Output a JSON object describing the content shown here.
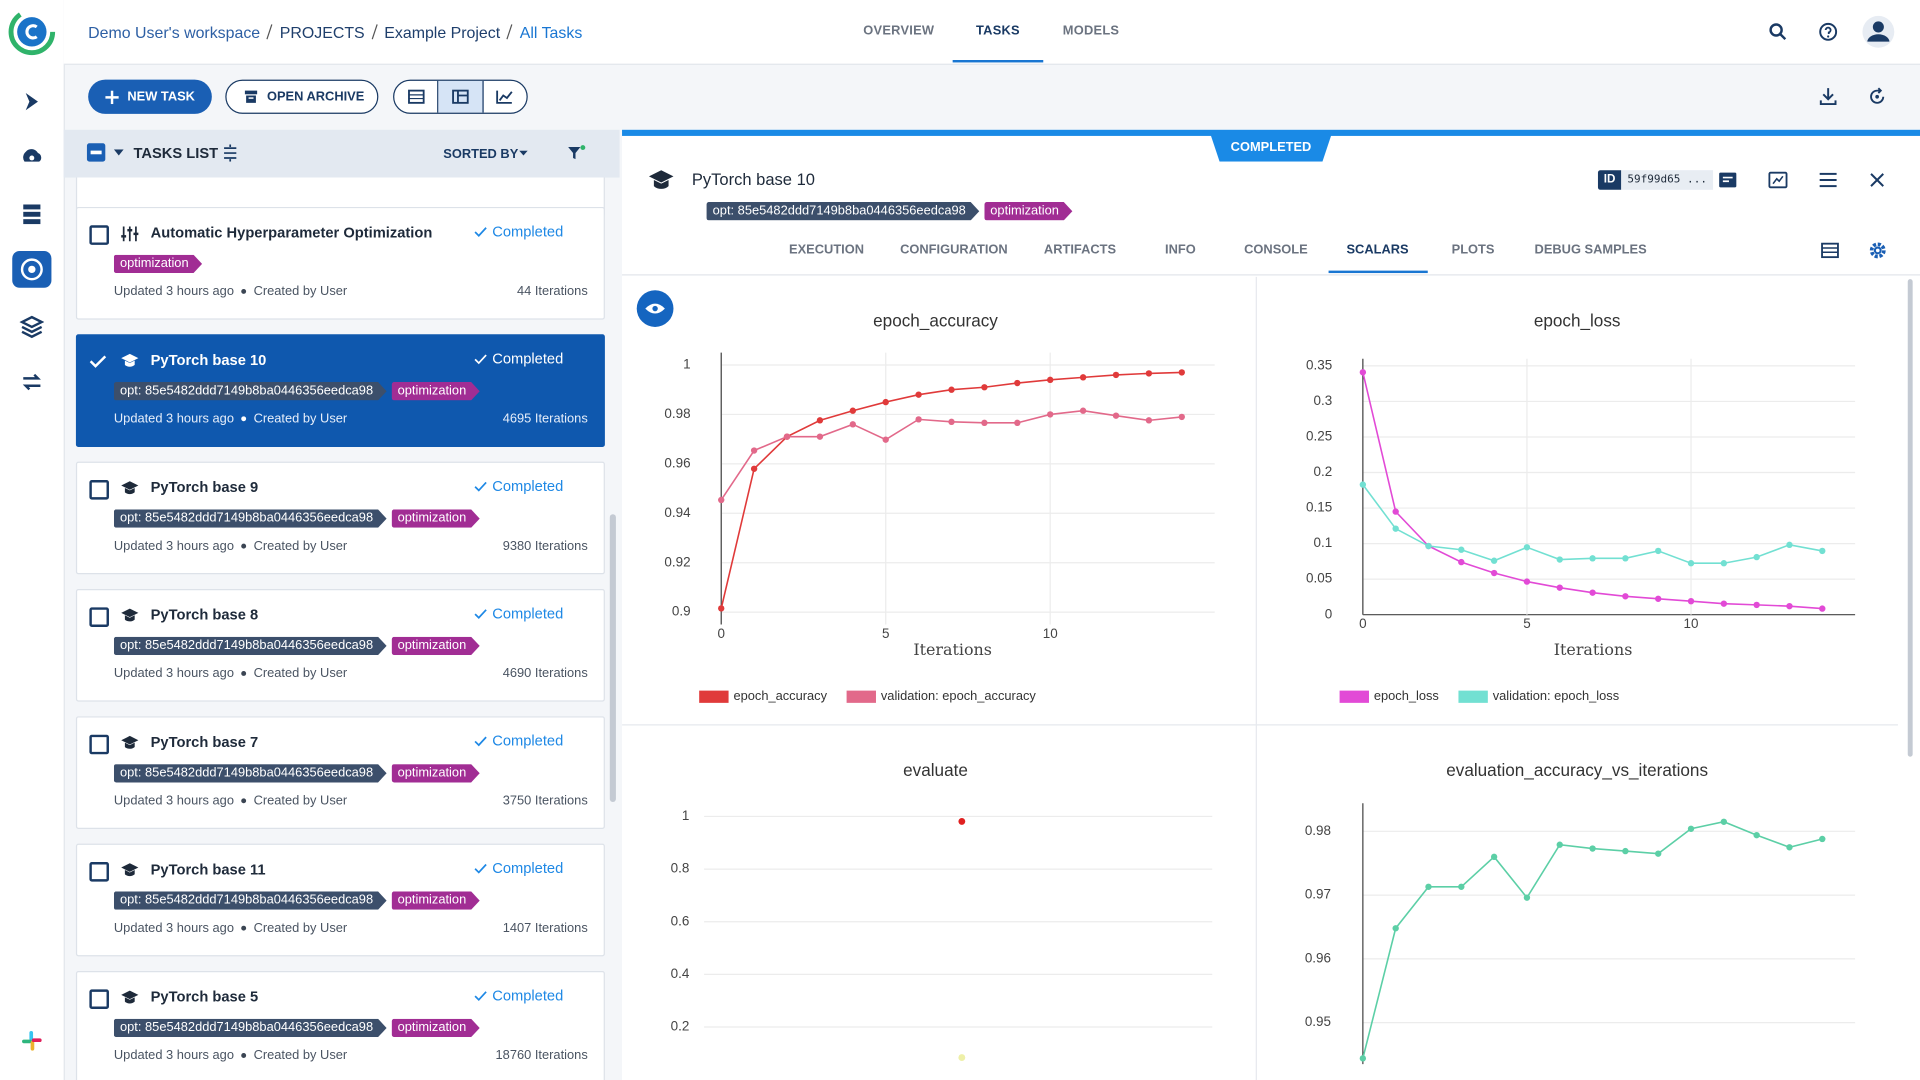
{
  "header": {
    "breadcrumbs": [
      "Demo User's workspace",
      "PROJECTS",
      "Example Project",
      "All Tasks"
    ],
    "tabs": [
      "OVERVIEW",
      "TASKS",
      "MODELS"
    ]
  },
  "toolbar": {
    "new_task": "NEW TASK",
    "open_archive": "OPEN ARCHIVE"
  },
  "tasks_list": {
    "title": "TASKS LIST",
    "sorted_by": "SORTED BY",
    "tasks": [
      {
        "name": "Automatic Hyperparameter Optimization",
        "status": "Completed",
        "tags": [
          {
            "text": "optimization",
            "color": "#a12d94"
          }
        ],
        "updated": "Updated 3 hours ago",
        "created": "Created by User",
        "iterations": "44 Iterations",
        "selected": false
      },
      {
        "name": "PyTorch base 10",
        "status": "Completed",
        "tags": [
          {
            "text": "opt: 85e5482ddd7149b8ba0446356eedca98",
            "color": "#3c4f6b"
          },
          {
            "text": "optimization",
            "color": "#a12d94"
          }
        ],
        "updated": "Updated 3 hours ago",
        "created": "Created by User",
        "iterations": "4695 Iterations",
        "selected": true
      },
      {
        "name": "PyTorch base 9",
        "status": "Completed",
        "tags": [
          {
            "text": "opt: 85e5482ddd7149b8ba0446356eedca98",
            "color": "#3c4f6b"
          },
          {
            "text": "optimization",
            "color": "#a12d94"
          }
        ],
        "updated": "Updated 3 hours ago",
        "created": "Created by User",
        "iterations": "9380 Iterations",
        "selected": false
      },
      {
        "name": "PyTorch base 8",
        "status": "Completed",
        "tags": [
          {
            "text": "opt: 85e5482ddd7149b8ba0446356eedca98",
            "color": "#3c4f6b"
          },
          {
            "text": "optimization",
            "color": "#a12d94"
          }
        ],
        "updated": "Updated 3 hours ago",
        "created": "Created by User",
        "iterations": "4690 Iterations",
        "selected": false
      },
      {
        "name": "PyTorch base 7",
        "status": "Completed",
        "tags": [
          {
            "text": "opt: 85e5482ddd7149b8ba0446356eedca98",
            "color": "#3c4f6b"
          },
          {
            "text": "optimization",
            "color": "#a12d94"
          }
        ],
        "updated": "Updated 3 hours ago",
        "created": "Created by User",
        "iterations": "3750 Iterations",
        "selected": false
      },
      {
        "name": "PyTorch base 11",
        "status": "Completed",
        "tags": [
          {
            "text": "opt: 85e5482ddd7149b8ba0446356eedca98",
            "color": "#3c4f6b"
          },
          {
            "text": "optimization",
            "color": "#a12d94"
          }
        ],
        "updated": "Updated 3 hours ago",
        "created": "Created by User",
        "iterations": "1407 Iterations",
        "selected": false
      },
      {
        "name": "PyTorch base 5",
        "status": "Completed",
        "tags": [
          {
            "text": "opt: 85e5482ddd7149b8ba0446356eedca98",
            "color": "#3c4f6b"
          },
          {
            "text": "optimization",
            "color": "#a12d94"
          }
        ],
        "updated": "Updated 3 hours ago",
        "created": "Created by User",
        "iterations": "18760 Iterations",
        "selected": false
      }
    ]
  },
  "task_details": {
    "status": "COMPLETED",
    "name": "PyTorch base 10",
    "id_label": "ID",
    "id": "59f99d65 ...",
    "tags": [
      {
        "text": "opt: 85e5482ddd7149b8ba0446356eedca98",
        "color": "#3c4f6b"
      },
      {
        "text": "optimization",
        "color": "#a12d94"
      }
    ],
    "tabs": [
      "EXECUTION",
      "CONFIGURATION",
      "ARTIFACTS",
      "INFO",
      "CONSOLE",
      "SCALARS",
      "PLOTS",
      "DEBUG SAMPLES"
    ]
  },
  "chart_data": [
    {
      "type": "line",
      "title": "epoch_accuracy",
      "x_label": "Iterations",
      "x": [
        0,
        1,
        2,
        3,
        4,
        5,
        6,
        7,
        8,
        9,
        10,
        11,
        12,
        13,
        14
      ],
      "series": [
        {
          "name": "epoch_accuracy",
          "color": "#e03a3a",
          "values": [
            0.9015,
            0.958,
            0.971,
            0.9776,
            0.9815,
            0.985,
            0.988,
            0.99,
            0.991,
            0.9927,
            0.994,
            0.995,
            0.996,
            0.9966,
            0.997
          ]
        },
        {
          "name": "validation: epoch_accuracy",
          "color": "#e2698a",
          "values": [
            0.9454,
            0.9654,
            0.971,
            0.971,
            0.976,
            0.9698,
            0.978,
            0.977,
            0.9766,
            0.9766,
            0.98,
            0.9815,
            0.9795,
            0.9776,
            0.979
          ]
        }
      ],
      "xlim": [
        0,
        15
      ],
      "xticks": [
        0,
        5,
        10
      ],
      "ylim": [
        0.895,
        1.005
      ],
      "yticks": [
        0.9,
        0.92,
        0.94,
        0.96,
        0.98,
        1
      ],
      "grid": true
    },
    {
      "type": "line",
      "title": "epoch_loss",
      "x_label": "Iterations",
      "x": [
        0,
        1,
        2,
        3,
        4,
        5,
        6,
        7,
        8,
        9,
        10,
        11,
        12,
        13,
        14
      ],
      "series": [
        {
          "name": "epoch_loss",
          "color": "#e24ad6",
          "values": [
            0.341,
            0.145,
            0.0966,
            0.074,
            0.0586,
            0.0466,
            0.038,
            0.031,
            0.0259,
            0.0224,
            0.019,
            0.0155,
            0.0138,
            0.012,
            0.0086
          ]
        },
        {
          "name": "validation: epoch_loss",
          "color": "#72e0d2",
          "values": [
            0.183,
            0.121,
            0.0966,
            0.0914,
            0.0759,
            0.0948,
            0.0776,
            0.0793,
            0.0793,
            0.0897,
            0.0724,
            0.0724,
            0.081,
            0.0983,
            0.0897
          ]
        }
      ],
      "xlim": [
        0,
        15
      ],
      "xticks": [
        0,
        5,
        10
      ],
      "ylim": [
        0,
        0.36
      ],
      "yticks": [
        0,
        0.05,
        0.1,
        0.15,
        0.2,
        0.25,
        0.3,
        0.35
      ],
      "grid": true
    },
    {
      "type": "scatter",
      "title": "evaluate",
      "series": [
        {
          "color": "#e02020",
          "values": [
            0.981
          ]
        },
        {
          "color": "#eef0a8",
          "values": [
            0.084
          ]
        }
      ],
      "ylim": [
        0.05,
        1.05
      ],
      "yticks": [
        0.2,
        0.4,
        0.6,
        0.8,
        1
      ],
      "grid": true
    },
    {
      "type": "line",
      "title": "evaluation_accuracy_vs_iterations",
      "x": [
        0,
        1,
        2,
        3,
        4,
        5,
        6,
        7,
        8,
        9,
        10,
        11,
        12,
        13,
        14
      ],
      "series": [
        {
          "color": "#5ccfa6",
          "values": [
            0.9444,
            0.9648,
            0.9713,
            0.9713,
            0.976,
            0.9696,
            0.9779,
            0.9773,
            0.9769,
            0.9765,
            0.9804,
            0.9815,
            0.9794,
            0.9775,
            0.9788
          ]
        }
      ],
      "xlim": [
        0,
        15
      ],
      "ylim": [
        0.9435,
        0.9844
      ],
      "yticks": [
        0.95,
        0.96,
        0.97,
        0.98
      ],
      "grid": true
    }
  ]
}
